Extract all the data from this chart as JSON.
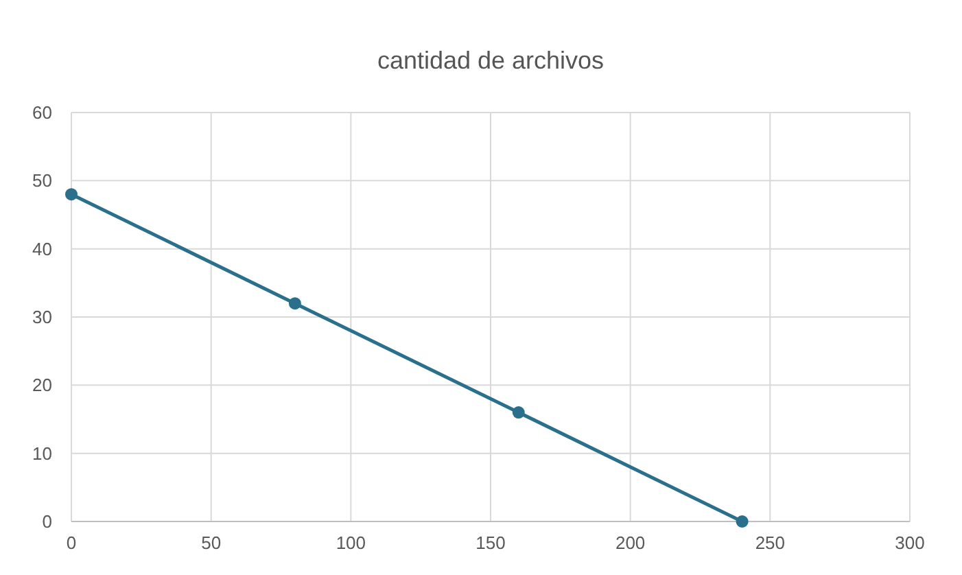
{
  "chart_data": {
    "type": "line",
    "title": "cantidad de archivos",
    "x": [
      0,
      80,
      160,
      240
    ],
    "series": [
      {
        "color": "#2a6f8c",
        "values": [
          48,
          32,
          16,
          0
        ]
      }
    ],
    "xlim": [
      0,
      300
    ],
    "xticks": [
      0,
      50,
      100,
      150,
      200,
      250,
      300
    ],
    "ylim": [
      0,
      60
    ],
    "yticks": [
      0,
      10,
      20,
      30,
      40,
      50,
      60
    ],
    "grid": true,
    "marker": "circle",
    "line_style": "solid"
  }
}
